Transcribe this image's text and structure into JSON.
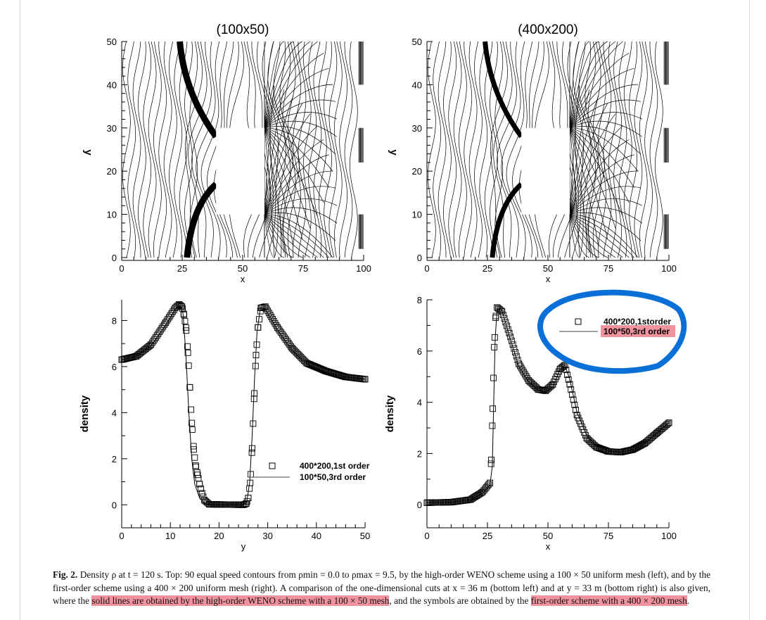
{
  "figure": {
    "top_left_title": "(100x50)",
    "top_right_title": "(400x200)",
    "caption": {
      "label": "Fig. 2.",
      "part1": " Density ρ at t = 120 s. Top: 90 equal speed contours from ρmin = 0.0 to ρmax = 9.5, by the high-order WENO scheme using a 100 × 50 uniform mesh (left), and by the first-order scheme using a 400 × 200 uniform mesh (right). A comparison of the one-dimensional cuts at x = 36 m (bottom left) and at y = 33 m (bottom right) is also given, where the ",
      "highlight1": "solid lines are obtained by the high-order WENO scheme with a 100 × 50 mesh",
      "part2": ", and the symbols are obtained by the ",
      "highlight2": "first-order scheme with a 400 × 200 mesh",
      "part3": "."
    },
    "highlight_color": "#f1939f",
    "annotation_color": "#0a6fd6"
  },
  "chart_data": [
    {
      "type": "contour",
      "title": "(100x50)",
      "xlabel": "x",
      "ylabel": "y",
      "xlim": [
        0,
        100
      ],
      "ylim": [
        0,
        50
      ],
      "xticks": [
        "0",
        "25",
        "50",
        "75",
        "100"
      ],
      "yticks": [
        "0",
        "10",
        "20",
        "30",
        "40",
        "50"
      ],
      "levels": 90,
      "level_range": [
        0.0,
        9.5
      ],
      "obstacle": {
        "x": [
          39,
          59
        ],
        "y": [
          10,
          30
        ]
      }
    },
    {
      "type": "contour",
      "title": "(400x200)",
      "xlabel": "x",
      "ylabel": "y",
      "xlim": [
        0,
        100
      ],
      "ylim": [
        0,
        50
      ],
      "xticks": [
        "0",
        "25",
        "50",
        "75",
        "100"
      ],
      "yticks": [
        "0",
        "10",
        "20",
        "30",
        "40",
        "50"
      ],
      "levels": 90,
      "level_range": [
        0.0,
        9.5
      ],
      "obstacle": {
        "x": [
          39,
          59
        ],
        "y": [
          10,
          30
        ]
      }
    },
    {
      "type": "line",
      "xlabel": "y",
      "ylabel": "density",
      "xlim": [
        0,
        50
      ],
      "ylim": [
        -1,
        8.9
      ],
      "xticks": [
        "0",
        "10",
        "20",
        "30",
        "40",
        "50"
      ],
      "yticks": [
        "0",
        "2",
        "4",
        "6",
        "8"
      ],
      "legend": [
        "400*200,1st order",
        "100*50,3rd order"
      ],
      "legend_position": "lower-right",
      "series": [
        {
          "name": "100*50,3rd order",
          "style": "line",
          "x": [
            0,
            3,
            6,
            9,
            11,
            12,
            12.6,
            13.2,
            13.8,
            14.4,
            15,
            16,
            17,
            18,
            25,
            25.7,
            26.3,
            26.8,
            27.3,
            27.8,
            28.5,
            29.5,
            32,
            35,
            38,
            42,
            46,
            50
          ],
          "y": [
            6.3,
            6.45,
            6.9,
            7.8,
            8.5,
            8.65,
            8.3,
            6.5,
            4,
            2,
            0.9,
            0.3,
            0.05,
            0,
            0,
            0.1,
            1,
            3,
            5.5,
            7.5,
            8.55,
            8.5,
            7.6,
            6.7,
            6.1,
            5.75,
            5.55,
            5.45
          ]
        },
        {
          "name": "400*200,1st order",
          "style": "square-markers",
          "x": [
            0,
            3,
            6,
            9,
            11,
            11.8,
            12.4,
            12.8,
            13.2,
            13.6,
            14,
            14.4,
            14.8,
            15.2,
            15.6,
            16,
            16.5,
            17,
            18,
            25,
            25.6,
            26,
            26.4,
            26.8,
            27.2,
            27.6,
            28,
            28.6,
            29.5,
            32,
            35,
            38,
            42,
            46,
            50
          ],
          "y": [
            6.3,
            6.45,
            6.95,
            7.9,
            8.55,
            8.7,
            8.6,
            8.25,
            7.7,
            6.6,
            5.1,
            3.55,
            2.4,
            1.7,
            1.3,
            0.9,
            0.5,
            0.2,
            0.02,
            0,
            0.05,
            0.3,
            0.95,
            2.45,
            4.6,
            6.5,
            7.7,
            8.55,
            8.6,
            7.7,
            6.8,
            6.15,
            5.8,
            5.55,
            5.45
          ]
        }
      ]
    },
    {
      "type": "line",
      "xlabel": "x",
      "ylabel": "density",
      "xlim": [
        0,
        100
      ],
      "ylim": [
        -0.9,
        8
      ],
      "xticks": [
        "0",
        "25",
        "50",
        "75",
        "100"
      ],
      "yticks": [
        "0",
        "2",
        "4",
        "6",
        "8"
      ],
      "legend": [
        "400*200,1storder",
        "100*50,3rd order"
      ],
      "legend_position": "top-right",
      "series": [
        {
          "name": "100*50,3rd order",
          "style": "line",
          "x": [
            0,
            10,
            18,
            23,
            26,
            27,
            27.6,
            28.2,
            29,
            31,
            34,
            38,
            42,
            46,
            49,
            52,
            55,
            57,
            59,
            62,
            66,
            70,
            75,
            80,
            85,
            90,
            95,
            100
          ],
          "y": [
            0.08,
            0.1,
            0.2,
            0.45,
            0.75,
            1.5,
            4,
            6.5,
            7.65,
            7.6,
            6.6,
            5.4,
            4.8,
            4.45,
            4.4,
            4.6,
            5.3,
            5.45,
            4.9,
            3.6,
            2.7,
            2.3,
            2.1,
            2.05,
            2.15,
            2.4,
            2.8,
            3.2
          ]
        },
        {
          "name": "400*200,1storder",
          "style": "square-markers",
          "x": [
            0,
            10,
            18,
            23,
            26,
            26.6,
            27.2,
            27.8,
            28.4,
            29,
            31,
            34,
            38,
            42,
            46,
            49,
            52,
            55,
            57,
            59,
            62,
            66,
            70,
            75,
            80,
            85,
            90,
            95,
            100
          ],
          "y": [
            0.08,
            0.1,
            0.2,
            0.5,
            0.85,
            1.75,
            3.75,
            6.15,
            7.3,
            7.7,
            7.55,
            6.7,
            5.5,
            4.85,
            4.5,
            4.45,
            4.7,
            5.3,
            5.45,
            4.7,
            3.5,
            2.6,
            2.25,
            2.08,
            2.05,
            2.15,
            2.4,
            2.8,
            3.2
          ]
        }
      ]
    }
  ]
}
